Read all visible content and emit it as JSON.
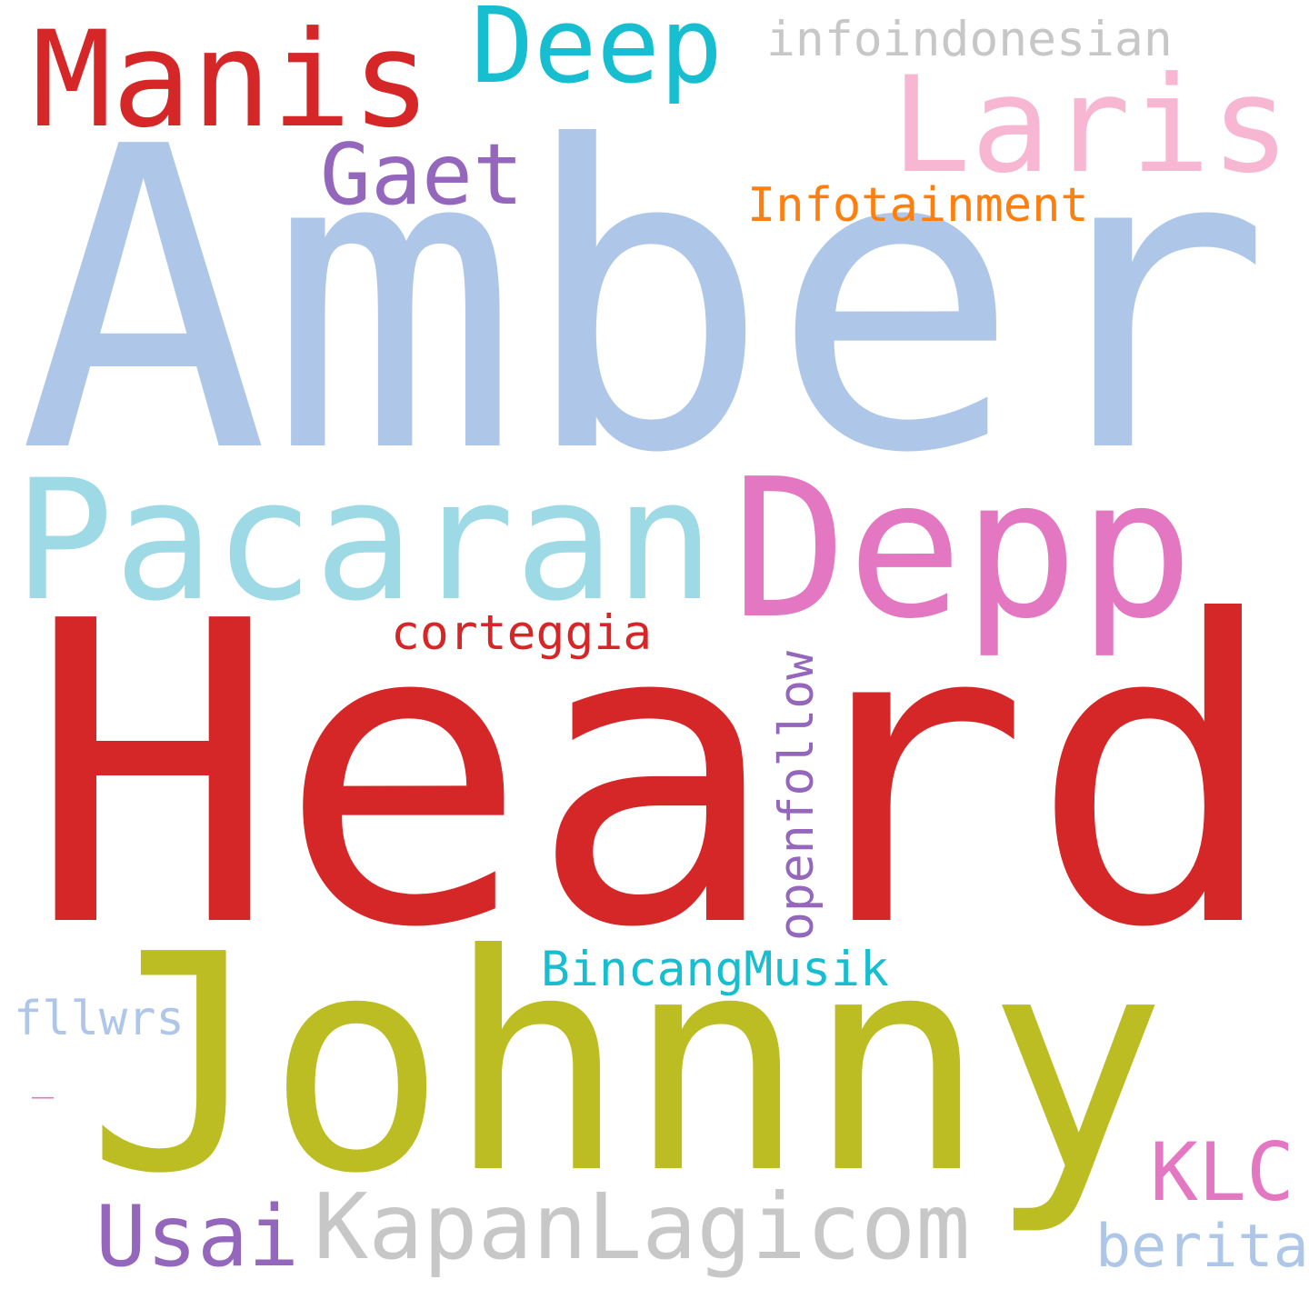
{
  "words": {
    "amber": {
      "text": "Amber",
      "color": "#aec7e8"
    },
    "heard": {
      "text": "Heard",
      "color": "#d62728"
    },
    "johnny": {
      "text": "Johnny",
      "color": "#bcbd22"
    },
    "depp": {
      "text": "Depp",
      "color": "#e377c2"
    },
    "pacaran": {
      "text": "Pacaran",
      "color": "#9edae5"
    },
    "manis": {
      "text": "Manis",
      "color": "#d62728"
    },
    "laris": {
      "text": "Laris",
      "color": "#f7b6d2"
    },
    "deep": {
      "text": "Deep",
      "color": "#17becf"
    },
    "kapanlagicom": {
      "text": "KapanLagicom",
      "color": "#c7c7c7"
    },
    "gaet": {
      "text": "Gaet",
      "color": "#9467bd"
    },
    "usai": {
      "text": "Usai",
      "color": "#9467bd"
    },
    "klc": {
      "text": "KLC",
      "color": "#e377c2"
    },
    "infoindonesian": {
      "text": "infoindonesian",
      "color": "#c7c7c7"
    },
    "infotainment": {
      "text": "Infotainment",
      "color": "#ff7f0e"
    },
    "corteggia": {
      "text": "corteggia",
      "color": "#d62728"
    },
    "openfollow": {
      "text": "openfollow",
      "color": "#9467bd"
    },
    "bincangmusik": {
      "text": "BincangMusik",
      "color": "#17becf"
    },
    "fllwrs": {
      "text": "fllwrs",
      "color": "#aec7e8"
    },
    "berita": {
      "text": "berita",
      "color": "#aec7e8"
    },
    "dash": {
      "text": "_",
      "color": "#e377c2"
    }
  }
}
